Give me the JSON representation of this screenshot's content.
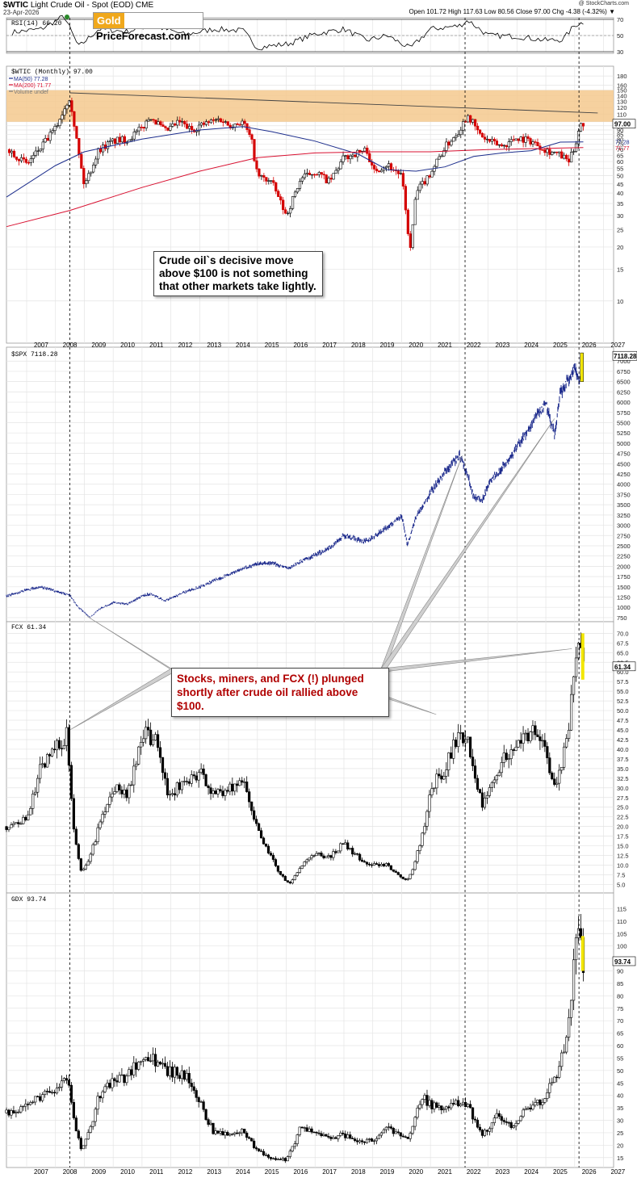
{
  "header": {
    "symbol": "$WTIC",
    "title_rest": "Light Crude Oil - Spot (EOD) CME",
    "date": "23-Apr-2026",
    "credit": "@ StockCharts.com",
    "quote": "Open 101.72  High 117.63  Low 80.56  Close 97.00  Chg -4.38 (-4.32%) ▼"
  },
  "logo": {
    "gold": "Gold",
    "rest": "PriceForecast.com"
  },
  "annotations": {
    "oil": "Crude oil`s decisive move above $100 is not something that other markets take lightly.",
    "stocks": "Stocks, miners, and FCX (!) plunged shortly after crude oil rallied above $100."
  },
  "colors": {
    "up_candle": "#000000",
    "down_candle": "#d40000",
    "ma50": "#1c2d8c",
    "ma200": "#d81030",
    "spx_line": "#1c2a8c",
    "highlight_band": "#f5c98e",
    "last_bar_highlight": "#f2e600"
  },
  "chart_data": [
    {
      "type": "line",
      "title": "RSI(14) 66.20",
      "ylim": [
        30,
        70
      ],
      "y_ticks": [
        30,
        50,
        70
      ],
      "last_value": "66.20",
      "series": [
        {
          "name": "RSI(14)",
          "x": [
            2006.5,
            2007.5,
            2008.3,
            2008.8,
            2009.5,
            2010.5,
            2011.3,
            2012.5,
            2013.5,
            2014.5,
            2015.0,
            2016.1,
            2017.0,
            2018.0,
            2018.8,
            2019.5,
            2020.3,
            2021.0,
            2022.0,
            2022.3,
            2023.0,
            2024.0,
            2025.0,
            2025.6,
            2026.0,
            2026.3
          ],
          "values": [
            54,
            58,
            74,
            36,
            58,
            55,
            63,
            51,
            58,
            56,
            35,
            40,
            52,
            58,
            44,
            50,
            34,
            58,
            62,
            69,
            50,
            49,
            44,
            45,
            63,
            66.2
          ]
        }
      ]
    },
    {
      "type": "candlestick",
      "title": "$WTIC (Monthly) 97.00",
      "scale": "log",
      "ylim": [
        6,
        200
      ],
      "x_ticks": [
        "2007",
        "2008",
        "2009",
        "2010",
        "2011",
        "2012",
        "2013",
        "2014",
        "2015",
        "2016",
        "2017",
        "2018",
        "2019",
        "2020",
        "2021",
        "2022",
        "2023",
        "2024",
        "2025",
        "2026",
        "2027"
      ],
      "y_ticks": [
        10,
        15,
        20,
        25,
        30,
        35,
        40,
        45,
        50,
        55,
        60,
        65,
        70,
        75,
        80,
        85,
        90,
        95,
        100,
        110,
        120,
        130,
        140,
        150,
        160,
        180
      ],
      "legend": [
        "MA(50) 77.28",
        "MA(200) 71.77",
        "Volume undef"
      ],
      "last_value": "97.00",
      "ma50_last": "77.28",
      "ma200_last": "71.77",
      "resistance_band": [
        100,
        150
      ],
      "trendline": {
        "from": [
          2008.5,
          145
        ],
        "to": [
          2026.8,
          112
        ]
      },
      "series": [
        {
          "name": "Close",
          "x": [
            2006.4,
            2007.0,
            2007.5,
            2008.0,
            2008.5,
            2008.8,
            2009.0,
            2009.5,
            2010.0,
            2010.5,
            2011.0,
            2011.3,
            2011.8,
            2012.3,
            2012.7,
            2013.0,
            2013.7,
            2014.0,
            2014.5,
            2014.8,
            2015.0,
            2015.5,
            2016.0,
            2016.5,
            2017.0,
            2017.5,
            2018.0,
            2018.8,
            2019.0,
            2019.5,
            2020.0,
            2020.3,
            2020.5,
            2021.0,
            2021.5,
            2022.0,
            2022.3,
            2022.7,
            2023.0,
            2023.5,
            2024.0,
            2024.5,
            2025.0,
            2025.5,
            2025.8,
            2026.0,
            2026.2,
            2026.3
          ],
          "values": [
            70,
            58,
            72,
            92,
            140,
            67,
            44,
            70,
            78,
            80,
            92,
            108,
            88,
            100,
            90,
            95,
            104,
            96,
            100,
            78,
            50,
            46,
            30,
            48,
            53,
            46,
            63,
            70,
            53,
            58,
            50,
            19,
            40,
            52,
            72,
            90,
            110,
            85,
            78,
            73,
            82,
            78,
            70,
            65,
            60,
            72,
            100,
            97
          ]
        },
        {
          "name": "MA(50)",
          "x": [
            2006.3,
            2008.0,
            2009.0,
            2011.0,
            2013.0,
            2014.5,
            2015.5,
            2017.0,
            2018.5,
            2019.5,
            2020.5,
            2021.5,
            2022.5,
            2023.5,
            2024.5,
            2025.5,
            2026.3
          ],
          "values": [
            38,
            57,
            68,
            80,
            90,
            94,
            88,
            78,
            66,
            54,
            53,
            56,
            64,
            67,
            69,
            77,
            77.28
          ]
        },
        {
          "name": "MA(200)",
          "x": [
            2006.3,
            2008.5,
            2011.0,
            2013.0,
            2015.0,
            2017.0,
            2019.0,
            2021.0,
            2023.0,
            2025.0,
            2026.3
          ],
          "values": [
            26,
            32,
            43,
            53,
            63,
            67,
            68,
            68,
            70,
            71,
            71.77
          ]
        }
      ]
    },
    {
      "type": "line",
      "title": "$SPX 7118.28",
      "ylim": [
        650,
        7300
      ],
      "y_ticks": [
        750,
        1000,
        1250,
        1500,
        1750,
        2000,
        2250,
        2500,
        2750,
        3000,
        3250,
        3500,
        3750,
        4000,
        4250,
        4500,
        4750,
        5000,
        5250,
        5500,
        5750,
        6000,
        6250,
        6500,
        6750,
        7000
      ],
      "last_value": "7118.28",
      "series": [
        {
          "name": "$SPX",
          "x": [
            2006.3,
            2007.0,
            2007.5,
            2008.0,
            2008.5,
            2008.8,
            2009.2,
            2009.5,
            2010.0,
            2010.5,
            2011.0,
            2011.3,
            2011.8,
            2012.5,
            2013.0,
            2013.5,
            2014.0,
            2014.5,
            2015.0,
            2015.5,
            2016.1,
            2016.5,
            2017.0,
            2017.5,
            2018.0,
            2018.8,
            2019.0,
            2019.5,
            2020.0,
            2020.2,
            2020.5,
            2021.0,
            2021.5,
            2022.0,
            2022.3,
            2022.5,
            2022.8,
            2023.0,
            2023.5,
            2024.0,
            2024.5,
            2025.0,
            2025.3,
            2025.5,
            2026.0,
            2026.2,
            2026.3
          ],
          "values": [
            1280,
            1420,
            1500,
            1400,
            1300,
            1000,
            760,
            950,
            1120,
            1080,
            1280,
            1330,
            1160,
            1380,
            1500,
            1650,
            1800,
            1950,
            2050,
            2080,
            1950,
            2120,
            2270,
            2450,
            2750,
            2600,
            2700,
            2950,
            3250,
            2550,
            3200,
            3800,
            4300,
            4700,
            4200,
            3700,
            3600,
            4000,
            4400,
            4900,
            5450,
            6000,
            5200,
            6200,
            6850,
            6500,
            7118.28
          ]
        }
      ]
    },
    {
      "type": "candlestick",
      "title": "FCX 61.34",
      "ylim": [
        3,
        73
      ],
      "y_ticks": [
        5.0,
        7.5,
        10.0,
        12.5,
        15.0,
        17.5,
        20.0,
        22.5,
        25.0,
        27.5,
        30.0,
        32.5,
        35.0,
        37.5,
        40.0,
        42.5,
        45.0,
        47.5,
        50.0,
        52.5,
        55.0,
        57.5,
        60.0,
        62.5,
        65.0,
        67.5,
        70.0
      ],
      "last_value": "61.34",
      "series": [
        {
          "name": "FCX",
          "x": [
            2006.3,
            2007.0,
            2007.5,
            2008.0,
            2008.4,
            2008.9,
            2009.5,
            2010.0,
            2010.5,
            2011.0,
            2011.5,
            2011.9,
            2012.5,
            2013.0,
            2013.5,
            2014.0,
            2014.5,
            2015.0,
            2015.5,
            2016.1,
            2016.5,
            2017.0,
            2017.5,
            2018.0,
            2018.5,
            2019.0,
            2019.5,
            2020.2,
            2020.5,
            2021.0,
            2021.5,
            2022.0,
            2022.3,
            2022.8,
            2023.5,
            2024.0,
            2024.5,
            2025.0,
            2025.3,
            2025.8,
            2026.0,
            2026.2,
            2026.3
          ],
          "values": [
            20,
            22,
            36,
            40,
            44,
            8,
            20,
            30,
            28,
            45,
            42,
            28,
            32,
            34,
            28,
            30,
            32,
            20,
            12,
            5,
            10,
            13,
            12,
            16,
            12,
            10,
            10,
            6,
            12,
            30,
            35,
            45,
            42,
            26,
            38,
            40,
            45,
            40,
            30,
            45,
            65,
            68,
            61.34
          ]
        }
      ]
    },
    {
      "type": "candlestick",
      "title": "GDX 93.74",
      "ylim": [
        12,
        120
      ],
      "y_ticks": [
        15,
        20,
        25,
        30,
        35,
        40,
        45,
        50,
        55,
        60,
        65,
        70,
        75,
        80,
        85,
        90,
        95,
        100,
        105,
        110,
        115
      ],
      "x_ticks": [
        "2007",
        "2008",
        "2009",
        "2010",
        "2011",
        "2012",
        "2013",
        "2014",
        "2015",
        "2016",
        "2017",
        "2018",
        "2019",
        "2020",
        "2021",
        "2022",
        "2023",
        "2024",
        "2025",
        "2026",
        "2027"
      ],
      "last_value": "93.74",
      "series": [
        {
          "name": "GDX",
          "x": [
            2006.3,
            2007.0,
            2007.5,
            2008.0,
            2008.4,
            2008.9,
            2009.5,
            2010.0,
            2010.5,
            2011.0,
            2011.5,
            2011.9,
            2012.5,
            2013.0,
            2013.5,
            2014.0,
            2014.5,
            2015.0,
            2015.5,
            2016.0,
            2016.5,
            2017.0,
            2017.5,
            2018.0,
            2018.5,
            2019.0,
            2019.5,
            2020.2,
            2020.7,
            2021.0,
            2021.5,
            2022.0,
            2022.3,
            2022.8,
            2023.3,
            2023.8,
            2024.3,
            2024.8,
            2025.0,
            2025.5,
            2025.8,
            2026.0,
            2026.1,
            2026.3
          ],
          "values": [
            33,
            36,
            40,
            42,
            48,
            18,
            40,
            45,
            48,
            56,
            54,
            50,
            48,
            38,
            25,
            24,
            26,
            18,
            15,
            14,
            28,
            24,
            23,
            24,
            21,
            22,
            27,
            22,
            40,
            36,
            34,
            37,
            36,
            24,
            32,
            28,
            34,
            38,
            40,
            52,
            70,
            95,
            115,
            93.74
          ]
        }
      ]
    }
  ]
}
